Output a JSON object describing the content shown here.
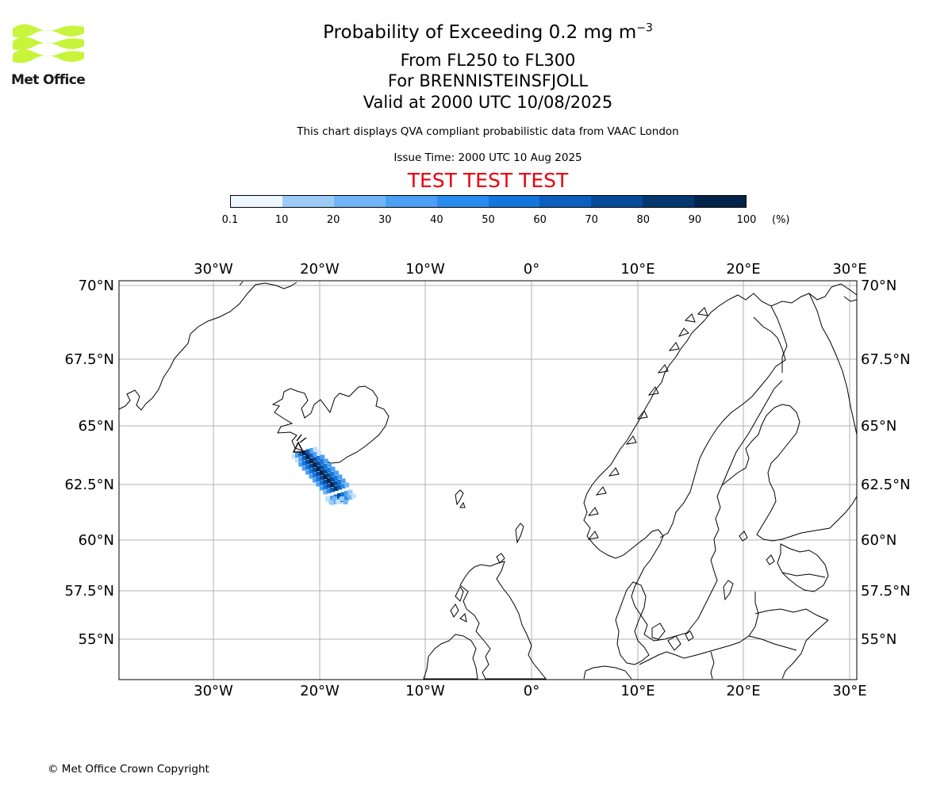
{
  "header": {
    "title_prefix": "Probability of Exceeding 0.2 mg m",
    "title_exponent": "−3",
    "level_range": "From FL250 to FL300",
    "volcano": "For BRENNISTEINSFJOLL",
    "valid_time": "Valid at 2000 UTC 10/08/2025",
    "disclaimer": "This chart displays QVA compliant probabilistic data from VAAC London",
    "issue_time": "Issue Time: 2000 UTC 10 Aug 2025",
    "test_banner": "TEST TEST TEST"
  },
  "logo": {
    "text": "Met Office",
    "color": "#c8f53c"
  },
  "colorbar": {
    "ticks": [
      "0.1",
      "10",
      "20",
      "30",
      "40",
      "50",
      "60",
      "70",
      "80",
      "90",
      "100"
    ],
    "unit": "(%)",
    "colors": [
      "#eef6fe",
      "#c6e1fb",
      "#9ccbf8",
      "#72b5f6",
      "#4ba0f3",
      "#2a8cee",
      "#1476dc",
      "#0b5fbd",
      "#074a9a",
      "#04366f",
      "#03244a"
    ]
  },
  "map": {
    "lon_labels": [
      "30°W",
      "20°W",
      "10°W",
      "0°",
      "10°E",
      "20°E",
      "30°E"
    ],
    "lat_labels": [
      "70°N",
      "67.5°N",
      "65°N",
      "62.5°N",
      "60°N",
      "57.5°N",
      "55°N"
    ]
  },
  "footer": {
    "copyright": "© Met Office Crown Copyright"
  }
}
